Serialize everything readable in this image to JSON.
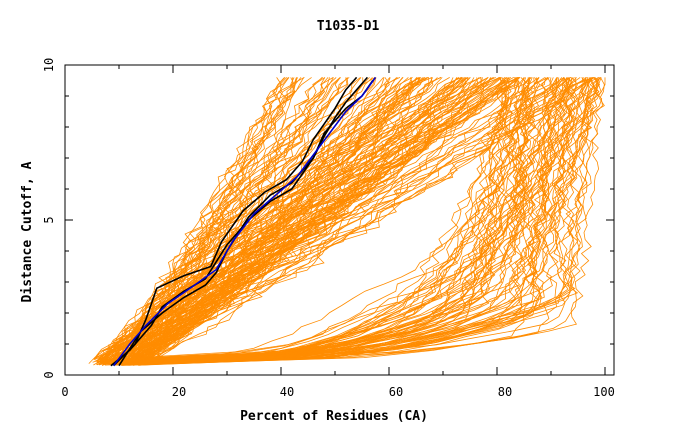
{
  "chart_data": {
    "type": "line",
    "title": "T1035-D1",
    "xlabel": "Percent of Residues (CA)",
    "ylabel": "Distance Cutoff, A",
    "xlim": [
      0,
      100
    ],
    "ylim": [
      0,
      10
    ],
    "x_ticks": [
      "0",
      "20",
      "40",
      "60",
      "80",
      "100"
    ],
    "y_ticks": [
      "0",
      "5",
      "10"
    ],
    "colors": {
      "background_series": "#ff8c00",
      "highlight_black": "#000000",
      "highlight_blue": "#0000cc"
    },
    "highlight_series": [
      {
        "color": "#000000",
        "x": [
          8.5,
          12,
          16,
          18,
          22,
          26,
          30,
          34,
          38,
          42,
          46,
          48,
          50,
          52,
          54,
          56
        ],
        "y": [
          0.3,
          0.8,
          1.6,
          2.2,
          2.7,
          3.1,
          4.2,
          5.0,
          5.6,
          6.0,
          7.0,
          7.7,
          8.3,
          8.8,
          9.2,
          9.6
        ]
      },
      {
        "color": "#000000",
        "x": [
          9,
          13,
          15,
          17,
          22,
          27,
          29,
          33,
          37,
          41,
          44,
          46,
          48,
          50,
          52,
          54
        ],
        "y": [
          0.3,
          1.0,
          1.8,
          2.8,
          3.2,
          3.5,
          4.3,
          5.3,
          5.9,
          6.3,
          6.9,
          7.6,
          8.1,
          8.6,
          9.2,
          9.6
        ]
      },
      {
        "color": "#000000",
        "x": [
          10,
          14,
          18,
          22,
          26,
          28,
          30,
          34,
          38,
          42,
          46,
          48,
          50,
          52,
          55,
          57
        ],
        "y": [
          0.3,
          1.4,
          2.0,
          2.5,
          2.9,
          3.3,
          4.0,
          5.1,
          5.8,
          6.2,
          7.0,
          7.8,
          8.2,
          8.6,
          9.0,
          9.5
        ]
      },
      {
        "color": "#0000cc",
        "x": [
          9,
          12,
          15,
          19,
          24,
          28,
          31,
          35,
          39,
          43,
          46,
          49,
          52,
          55,
          57.5
        ],
        "y": [
          0.3,
          1.0,
          1.6,
          2.3,
          2.9,
          3.4,
          4.3,
          5.2,
          5.8,
          6.4,
          7.1,
          7.8,
          8.5,
          9.0,
          9.6
        ]
      }
    ]
  }
}
